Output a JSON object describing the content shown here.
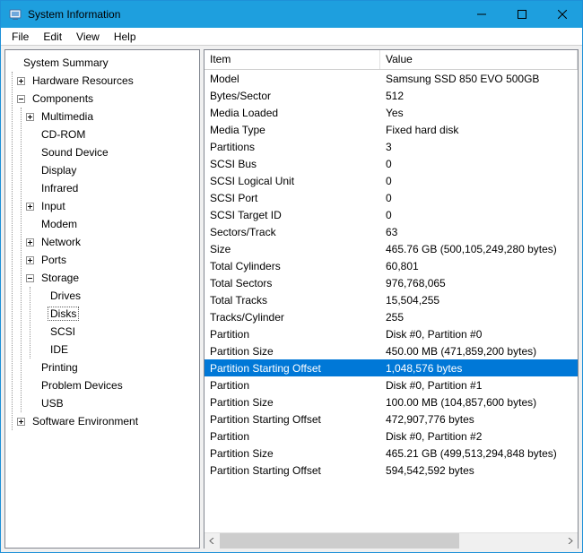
{
  "window": {
    "title": "System Information",
    "accent_color": "#1e9fde",
    "selection_color": "#0078d7"
  },
  "menu": {
    "items": [
      "File",
      "Edit",
      "View",
      "Help"
    ]
  },
  "tree": {
    "root": "System Summary",
    "hardware_resources": "Hardware Resources",
    "components": "Components",
    "components_children": {
      "multimedia": "Multimedia",
      "cdrom": "CD-ROM",
      "sound": "Sound Device",
      "display": "Display",
      "infrared": "Infrared",
      "input": "Input",
      "modem": "Modem",
      "network": "Network",
      "ports": "Ports",
      "storage": "Storage",
      "storage_children": {
        "drives": "Drives",
        "disks": "Disks",
        "scsi": "SCSI",
        "ide": "IDE"
      },
      "printing": "Printing",
      "problem_devices": "Problem Devices",
      "usb": "USB"
    },
    "software_environment": "Software Environment"
  },
  "list": {
    "columns": {
      "item": "Item",
      "value": "Value"
    },
    "rows": [
      {
        "item": "Model",
        "value": "Samsung SSD 850 EVO 500GB"
      },
      {
        "item": "Bytes/Sector",
        "value": "512"
      },
      {
        "item": "Media Loaded",
        "value": "Yes"
      },
      {
        "item": "Media Type",
        "value": "Fixed hard disk"
      },
      {
        "item": "Partitions",
        "value": "3"
      },
      {
        "item": "SCSI Bus",
        "value": "0"
      },
      {
        "item": "SCSI Logical Unit",
        "value": "0"
      },
      {
        "item": "SCSI Port",
        "value": "0"
      },
      {
        "item": "SCSI Target ID",
        "value": "0"
      },
      {
        "item": "Sectors/Track",
        "value": "63"
      },
      {
        "item": "Size",
        "value": "465.76 GB (500,105,249,280 bytes)"
      },
      {
        "item": "Total Cylinders",
        "value": "60,801"
      },
      {
        "item": "Total Sectors",
        "value": "976,768,065"
      },
      {
        "item": "Total Tracks",
        "value": "15,504,255"
      },
      {
        "item": "Tracks/Cylinder",
        "value": "255"
      },
      {
        "item": "Partition",
        "value": "Disk #0, Partition #0"
      },
      {
        "item": "Partition Size",
        "value": "450.00 MB (471,859,200 bytes)"
      },
      {
        "item": "Partition Starting Offset",
        "value": "1,048,576 bytes",
        "selected": true
      },
      {
        "item": "Partition",
        "value": "Disk #0, Partition #1"
      },
      {
        "item": "Partition Size",
        "value": "100.00 MB (104,857,600 bytes)"
      },
      {
        "item": "Partition Starting Offset",
        "value": "472,907,776 bytes"
      },
      {
        "item": "Partition",
        "value": "Disk #0, Partition #2"
      },
      {
        "item": "Partition Size",
        "value": "465.21 GB (499,513,294,848 bytes)"
      },
      {
        "item": "Partition Starting Offset",
        "value": "594,542,592 bytes"
      }
    ]
  }
}
